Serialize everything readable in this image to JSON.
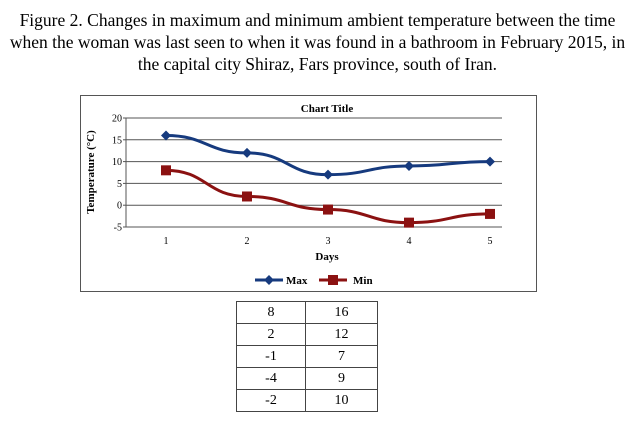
{
  "caption": "Figure 2. Changes in maximum and minimum ambient temperature between the time when the woman was last seen to when it was found in a bathroom in February 2015, in the capital city Shiraz, Fars province, south of Iran.",
  "colors": {
    "max": "#163a7e",
    "min": "#8b1111"
  },
  "chart_data": {
    "type": "line",
    "title": "Chart Title",
    "xlabel": "Days",
    "ylabel": "Temperature (°C)",
    "categories": [
      "1",
      "2",
      "3",
      "4",
      "5"
    ],
    "ylim": [
      -5,
      20
    ],
    "yticks": [
      "20",
      "15",
      "10",
      "5",
      "0",
      "-5"
    ],
    "grid": true,
    "legend": "bottom",
    "series": [
      {
        "name": "Max",
        "values": [
          16,
          12,
          7,
          9,
          10
        ],
        "marker": "diamond",
        "color": "#163a7e"
      },
      {
        "name": "Min",
        "values": [
          8,
          2,
          -1,
          -4,
          -2
        ],
        "marker": "square",
        "color": "#8b1111"
      }
    ]
  },
  "table": {
    "rows": [
      [
        "8",
        "16"
      ],
      [
        "2",
        "12"
      ],
      [
        "-1",
        "7"
      ],
      [
        "-4",
        "9"
      ],
      [
        "-2",
        "10"
      ]
    ]
  }
}
